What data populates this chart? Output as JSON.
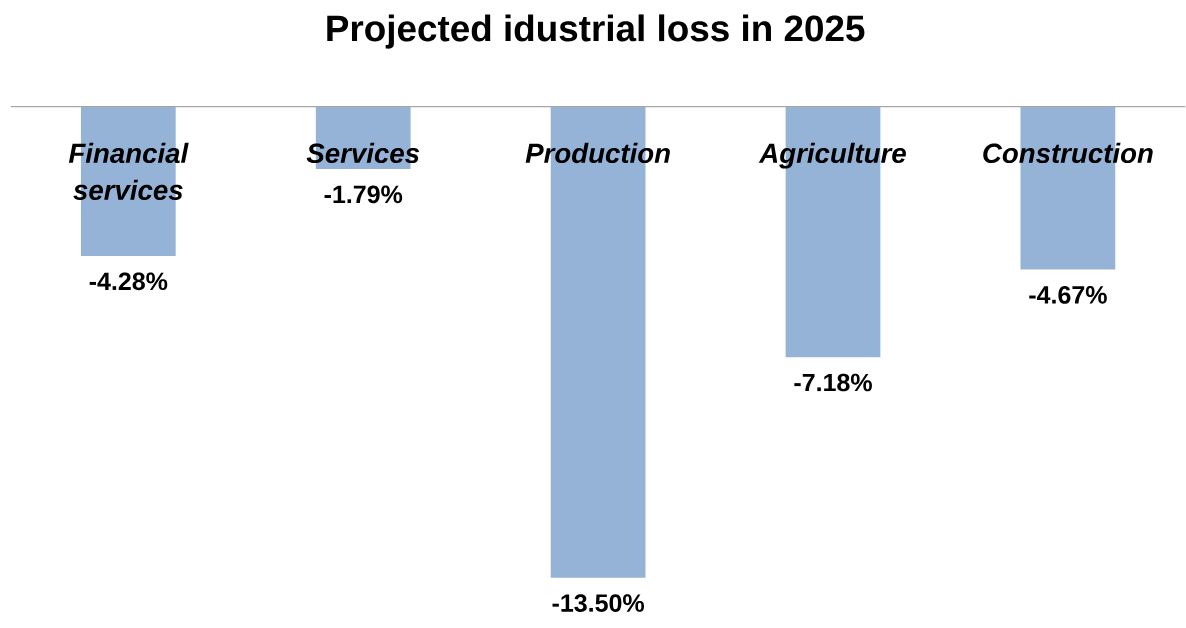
{
  "chart_data": {
    "type": "bar",
    "title": "Projected idustrial loss in 2025",
    "categories": [
      "Financial services",
      "Services",
      "Production",
      "Agriculture",
      "Construction"
    ],
    "values": [
      -4.28,
      -1.79,
      -13.5,
      -7.18,
      -4.67
    ],
    "value_labels": [
      "-4.28%",
      "-1.79%",
      "-13.50%",
      "-7.18%",
      "-4.67%"
    ],
    "color": "#95b3d7"
  }
}
